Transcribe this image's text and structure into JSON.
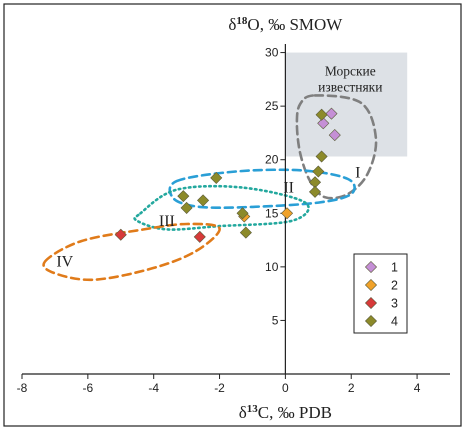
{
  "chart_data": {
    "type": "scatter",
    "title": "",
    "xlabel": {
      "delta": "δ",
      "mass": "13",
      "element": "C",
      "unit": ", ‰ PDB"
    },
    "ylabel": {
      "delta": "δ",
      "mass": "18",
      "element": "O",
      "unit": ", ‰ SMOW"
    },
    "xlim": [
      -8,
      5
    ],
    "ylim": [
      0,
      30.8
    ],
    "x_ticks": [
      -8,
      -6,
      -4,
      -2,
      0,
      2,
      4
    ],
    "y_ticks": [
      5,
      10,
      15,
      20,
      25,
      30
    ],
    "grid": false,
    "legend_position": "bottom-right",
    "shaded_region": {
      "x": [
        0,
        3.7
      ],
      "y": [
        20.3,
        30
      ],
      "color": "#dde1e6",
      "label_lines": [
        "Морские",
        "известняки"
      ]
    },
    "groups": [
      {
        "label": "I",
        "style": "dashed",
        "color": "#7f7f7f",
        "label_at": [
          2.2,
          18.8
        ],
        "outline": [
          [
            0.9,
            26.0
          ],
          [
            2.3,
            25.3
          ],
          [
            2.75,
            22.0
          ],
          [
            2.5,
            18.7
          ],
          [
            1.9,
            16.8
          ],
          [
            1.2,
            16.5
          ],
          [
            0.75,
            18.0
          ],
          [
            0.45,
            20.6
          ],
          [
            0.35,
            23.4
          ],
          [
            0.45,
            25.2
          ]
        ]
      },
      {
        "label": "II",
        "style": "dashed",
        "color": "#2a9fd6",
        "label_at": [
          0.1,
          17.4
        ],
        "outline": [
          [
            -3.3,
            18.0
          ],
          [
            -1.5,
            18.9
          ],
          [
            0.5,
            19.0
          ],
          [
            1.9,
            18.2
          ],
          [
            2.0,
            16.8
          ],
          [
            1.0,
            16.0
          ],
          [
            -1.0,
            15.6
          ],
          [
            -2.6,
            15.6
          ],
          [
            -3.4,
            16.4
          ]
        ]
      },
      {
        "label": "III",
        "style": "dotted",
        "color": "#23a89e",
        "label_at": [
          -3.6,
          14.3
        ],
        "outline": [
          [
            -4.4,
            15.0
          ],
          [
            -3.3,
            17.2
          ],
          [
            -1.3,
            17.4
          ],
          [
            0.6,
            16.0
          ],
          [
            0.2,
            14.3
          ],
          [
            -2.0,
            13.8
          ],
          [
            -3.6,
            13.5
          ],
          [
            -4.5,
            14.3
          ]
        ]
      },
      {
        "label": "IV",
        "style": "dashed",
        "color": "#e07b1a",
        "label_at": [
          -6.7,
          10.5
        ],
        "outline": [
          [
            -7.3,
            10.5
          ],
          [
            -6.2,
            12.4
          ],
          [
            -4.3,
            13.5
          ],
          [
            -3.0,
            14.0
          ],
          [
            -2.0,
            13.6
          ],
          [
            -2.7,
            11.5
          ],
          [
            -4.0,
            9.9
          ],
          [
            -5.8,
            8.8
          ],
          [
            -7.0,
            9.4
          ]
        ]
      }
    ],
    "series": [
      {
        "name": "1",
        "color": "#c58fd6",
        "marker": "diamond",
        "points": [
          [
            1.4,
            24.3
          ],
          [
            1.15,
            23.4
          ],
          [
            1.5,
            22.3
          ]
        ]
      },
      {
        "name": "2",
        "color": "#f0a22a",
        "marker": "diamond",
        "points": [
          [
            0.05,
            15.0
          ],
          [
            -1.25,
            14.7
          ]
        ]
      },
      {
        "name": "3",
        "color": "#d73a3a",
        "marker": "diamond",
        "points": [
          [
            -5.0,
            13.0
          ],
          [
            -2.6,
            12.8
          ]
        ]
      },
      {
        "name": "4",
        "color": "#8c8a2a",
        "marker": "diamond",
        "points": [
          [
            1.1,
            24.2
          ],
          [
            1.1,
            20.3
          ],
          [
            1.0,
            18.9
          ],
          [
            0.9,
            17.9
          ],
          [
            0.9,
            17.0
          ],
          [
            -2.1,
            18.3
          ],
          [
            -3.1,
            16.6
          ],
          [
            -2.5,
            16.2
          ],
          [
            -3.0,
            15.5
          ],
          [
            -1.3,
            15.0
          ],
          [
            -1.2,
            13.2
          ]
        ]
      }
    ]
  }
}
